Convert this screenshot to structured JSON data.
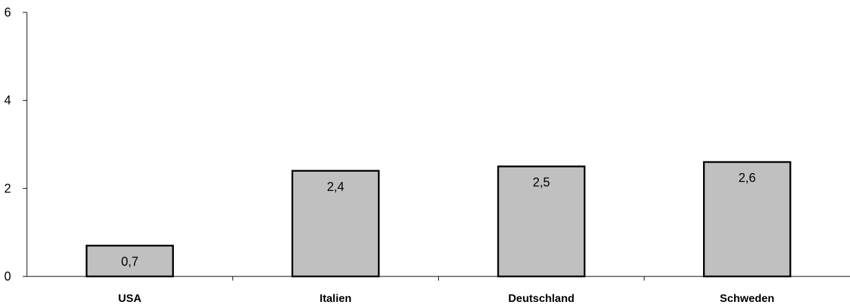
{
  "chart_data": {
    "type": "bar",
    "categories": [
      "USA",
      "Italien",
      "Deutschland",
      "Schweden"
    ],
    "values": [
      0.7,
      2.4,
      2.5,
      2.6
    ],
    "data_labels": [
      "0,7",
      "2,4",
      "2,5",
      "2,6"
    ],
    "ylim": [
      0,
      6
    ],
    "yticks": [
      0,
      2,
      4,
      6
    ],
    "ytick_labels": [
      "0",
      "2",
      "4",
      "6"
    ],
    "title": "",
    "xlabel": "",
    "ylabel": "",
    "grid": false,
    "legend": "none",
    "bar_color": "#c0c0c0",
    "bar_outline": "#000000"
  }
}
